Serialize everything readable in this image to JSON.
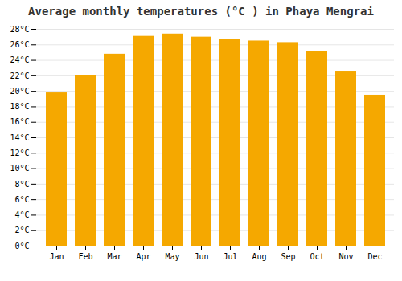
{
  "chart_data": {
    "type": "bar",
    "title": "Average monthly temperatures (°C ) in Phaya Mengrai",
    "categories": [
      "Jan",
      "Feb",
      "Mar",
      "Apr",
      "May",
      "Jun",
      "Jul",
      "Aug",
      "Sep",
      "Oct",
      "Nov",
      "Dec"
    ],
    "values": [
      19.8,
      22.0,
      24.8,
      27.1,
      27.4,
      27.0,
      26.7,
      26.5,
      26.3,
      25.1,
      22.5,
      19.5
    ],
    "color": "#F5A800",
    "ylim": [
      0,
      28
    ],
    "yticks": [
      {
        "value": 0,
        "label": "0°C"
      },
      {
        "value": 2,
        "label": "2°C"
      },
      {
        "value": 4,
        "label": "4°C"
      },
      {
        "value": 6,
        "label": "6°C"
      },
      {
        "value": 8,
        "label": "8°C"
      },
      {
        "value": 10,
        "label": "10°C"
      },
      {
        "value": 12,
        "label": "12°C"
      },
      {
        "value": 14,
        "label": "14°C"
      },
      {
        "value": 16,
        "label": "16°C"
      },
      {
        "value": 18,
        "label": "18°C"
      },
      {
        "value": 20,
        "label": "20°C"
      },
      {
        "value": 22,
        "label": "22°C"
      },
      {
        "value": 24,
        "label": "24°C"
      },
      {
        "value": 26,
        "label": "26°C"
      },
      {
        "value": 28,
        "label": "28°C"
      }
    ],
    "grid": true
  }
}
